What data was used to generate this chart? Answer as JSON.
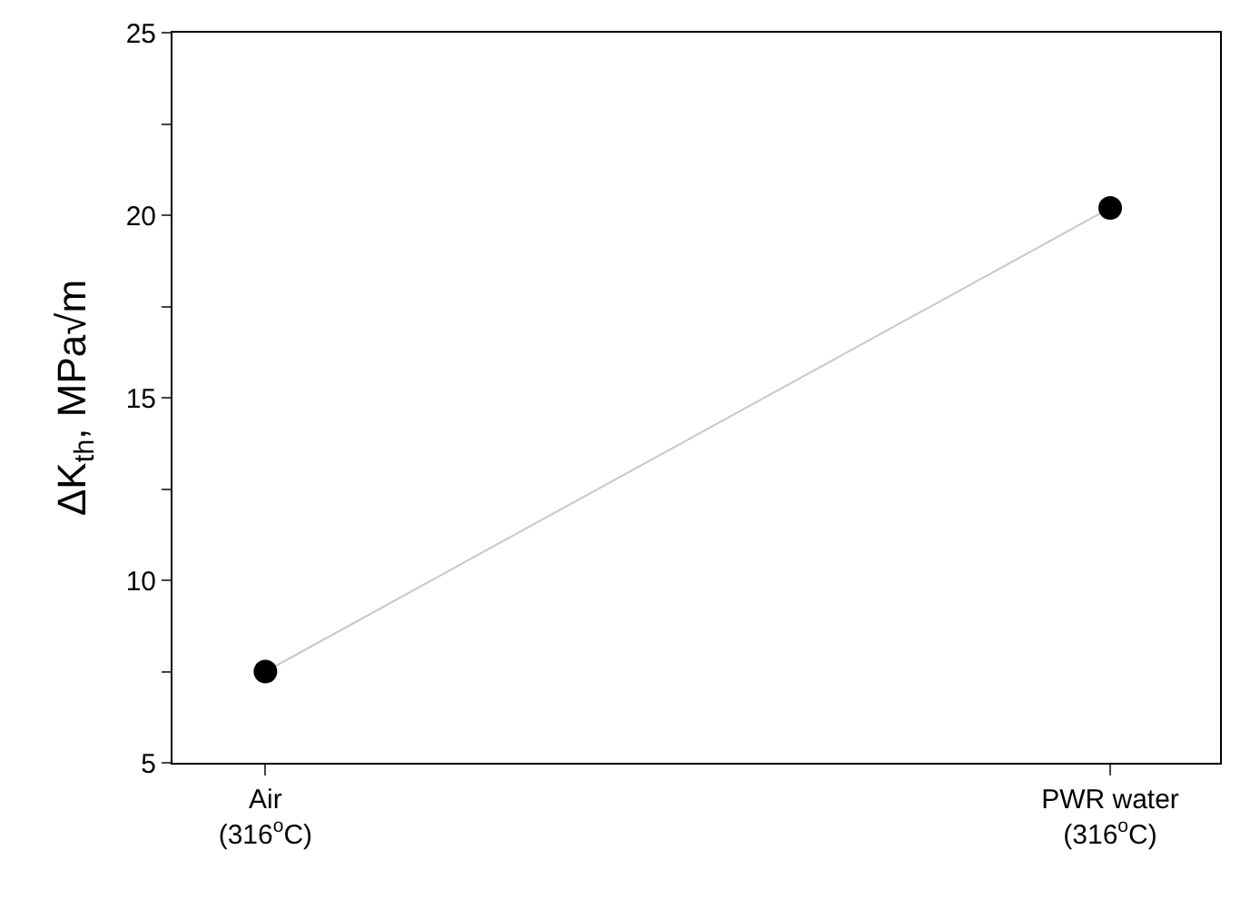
{
  "chart_data": {
    "type": "scatter",
    "ylabel": "ΔK$_{th}$, MPa√m",
    "categories": [
      "Air\n(316$^{o}$C)",
      "PWR water\n(316$^{o}$C)"
    ],
    "series": [
      {
        "type": "line",
        "color": "#c8c8c8",
        "values": [
          7.5,
          20.2
        ],
        "marker": "none"
      },
      {
        "color": "#000000",
        "values": [
          7.5,
          20.2
        ],
        "marker": "circle"
      }
    ],
    "ylim": [
      5,
      25
    ],
    "yticks": [
      5,
      {
        "value": 7.5,
        "label": null
      },
      10,
      {
        "value": 12.5,
        "label": null
      },
      15,
      {
        "value": 17.5,
        "label": null
      },
      20,
      {
        "value": 22.5,
        "label": null
      },
      25
    ]
  }
}
